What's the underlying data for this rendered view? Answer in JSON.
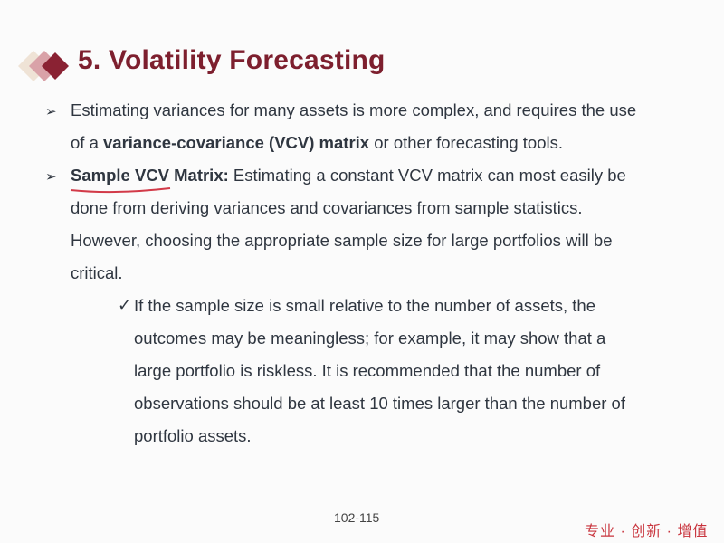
{
  "slide": {
    "title": "5. Volatility Forecasting",
    "bullet_icon": "arrow-bullet-icon",
    "check_icon": "checkmark-icon",
    "bullet1": {
      "line1": "Estimating variances for many assets is more complex, and requires the use",
      "line2_pre": "of a ",
      "line2_bold": "variance-covariance (VCV) matrix",
      "line2_post": " or other forecasting tools."
    },
    "bullet2": {
      "bold": "Sample VCV Matrix:",
      "line1_post": " Estimating a constant VCV matrix can most easily be",
      "line2": "done from deriving variances and covariances from sample statistics.",
      "line3": "However, choosing the appropriate sample size for large portfolios will be",
      "line4": "critical."
    },
    "sub_bullet": {
      "check": "✓",
      "line1": "If the sample size is small relative to the number of assets, the",
      "line2": "outcomes may be meaningless; for example, it may show that a",
      "line3": "large portfolio is riskless. It is recommended that the number of",
      "line4": "observations should be at least 10 times larger than the number of",
      "line5": "portfolio assets."
    },
    "page_number": "102-115",
    "slogan": "专业 · 创新 · 增值",
    "colors": {
      "title": "#7d1f2e",
      "slogan": "#c8333c",
      "underline": "#d23a48"
    }
  }
}
